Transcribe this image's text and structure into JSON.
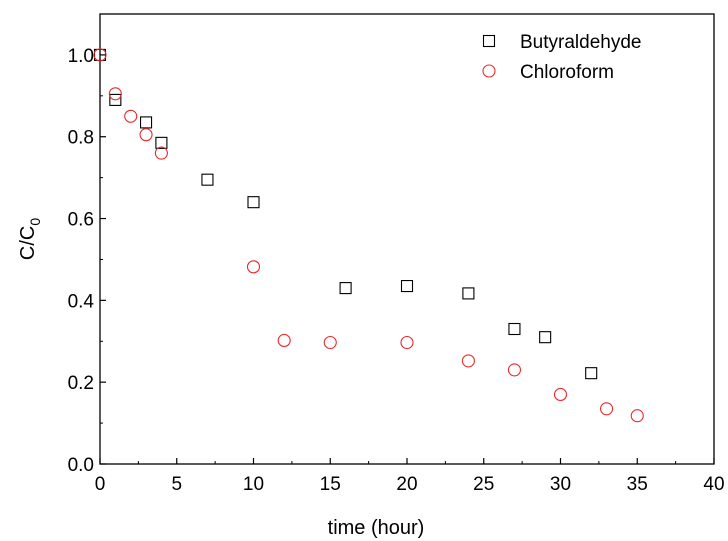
{
  "chart_data": {
    "type": "scatter",
    "xlabel": "time (hour)",
    "ylabel_main": "C/C",
    "ylabel_sub": "0",
    "xlim": [
      0,
      40
    ],
    "ylim": [
      0,
      1.1
    ],
    "x_ticks": [
      0,
      5,
      10,
      15,
      20,
      25,
      30,
      35,
      40
    ],
    "y_ticks": [
      0.0,
      0.2,
      0.4,
      0.6,
      0.8,
      1.0
    ],
    "x_tick_labels": [
      "0",
      "5",
      "10",
      "15",
      "20",
      "25",
      "30",
      "35",
      "40"
    ],
    "y_tick_labels": [
      "0.0",
      "0.2",
      "0.4",
      "0.6",
      "0.8",
      "1.0"
    ],
    "grid": false,
    "legend_position": "top-right",
    "series": [
      {
        "name": "Butyraldehyde",
        "marker": "square",
        "color": "#000000",
        "x": [
          0,
          1,
          3,
          4,
          7,
          10,
          16,
          20,
          24,
          27,
          29,
          32
        ],
        "y": [
          1.0,
          0.89,
          0.835,
          0.785,
          0.695,
          0.64,
          0.43,
          0.435,
          0.417,
          0.33,
          0.31,
          0.222
        ]
      },
      {
        "name": "Chloroform",
        "marker": "circle",
        "color": "#e8282a",
        "x": [
          0,
          1,
          2,
          3,
          4,
          10,
          12,
          15,
          20,
          24,
          27,
          30,
          33,
          35
        ],
        "y": [
          1.0,
          0.905,
          0.85,
          0.805,
          0.76,
          0.482,
          0.302,
          0.297,
          0.297,
          0.252,
          0.23,
          0.17,
          0.135,
          0.118
        ]
      }
    ]
  }
}
